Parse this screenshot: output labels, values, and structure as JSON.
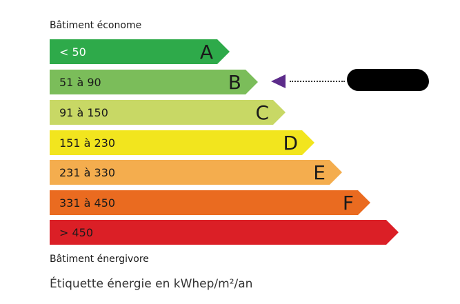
{
  "top_label": "Bâtiment économe",
  "bottom_label": "Bâtiment énergivore",
  "footer": "Étiquette énergie en kWhep/m²/an",
  "classes": [
    {
      "range": "< 50",
      "letter": "A",
      "color": "#2eaa4a"
    },
    {
      "range": "51 à 90",
      "letter": "B",
      "color": "#7bbd5a"
    },
    {
      "range": "91 à 150",
      "letter": "C",
      "color": "#c8d865"
    },
    {
      "range": "151 à 230",
      "letter": "D",
      "color": "#f2e51e"
    },
    {
      "range": "231 à 330",
      "letter": "E",
      "color": "#f4ad4e"
    },
    {
      "range": "331 à 450",
      "letter": "F",
      "color": "#ea6b20"
    },
    {
      "range": "> 450",
      "letter": "",
      "color": "#db1f26"
    }
  ],
  "indicator": {
    "class": "B",
    "color": "#5c2b8a"
  }
}
